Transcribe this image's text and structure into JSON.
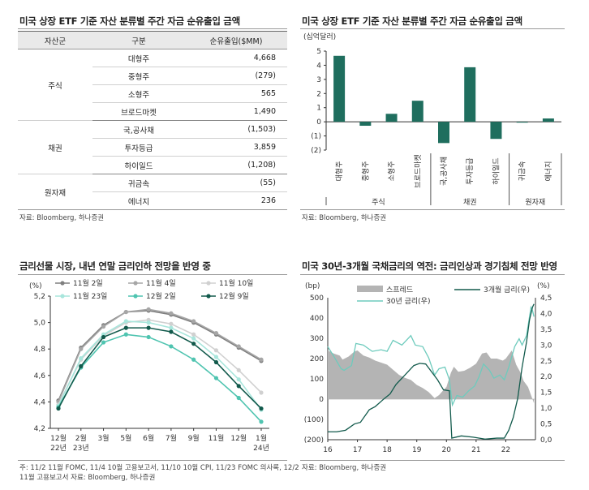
{
  "panels": {
    "tl": {
      "title": "미국 상장 ETF 기준 자산 분류별 주간 자금 순유출입 금액",
      "source": "자료: Bloomberg, 하나증권",
      "table": {
        "headers": [
          "자산군",
          "구분",
          "순유출입($MM)"
        ],
        "groups": [
          {
            "asset": "주식",
            "rows": [
              {
                "label": "대형주",
                "value": "4,668"
              },
              {
                "label": "중형주",
                "value": "(279)"
              },
              {
                "label": "소형주",
                "value": "565"
              },
              {
                "label": "브로드마켓",
                "value": "1,490"
              }
            ]
          },
          {
            "asset": "채권",
            "rows": [
              {
                "label": "국,공사채",
                "value": "(1,503)"
              },
              {
                "label": "투자등급",
                "value": "3,859"
              },
              {
                "label": "하이일드",
                "value": "(1,208)"
              }
            ]
          },
          {
            "asset": "원자재",
            "rows": [
              {
                "label": "귀금속",
                "value": "(55)"
              },
              {
                "label": "에너지",
                "value": "236"
              }
            ]
          }
        ]
      }
    },
    "tr": {
      "title": "미국 상장 ETF 기준 자산 분류별 주간 자금 순유출입 금액",
      "source": "자료: Bloomberg, 하나증권"
    },
    "bl": {
      "title": "금리선물 시장, 내년 연말 금리인하 전망을 반영 중",
      "source": "주: 11/2 11월 FOMC, 11/4 10월 고용보고서, 11/10 10월 CPI, 11/23 FOMC 의사록, 12/2",
      "source2": "11월 고용보고서          자료: Bloomberg, 하나증권"
    },
    "br": {
      "title": "미국 30년-3개월 국채금리의 역전: 금리인상과 경기침체 전망 반영",
      "source": "자료: Bloomberg, 하나증권"
    }
  },
  "chart_data": [
    {
      "type": "bar",
      "title": "미국 상장 ETF 기준 자산 분류별 주간 자금 순유출입 금액",
      "unit_label": "(십억달러)",
      "categories": [
        "대형주",
        "중형주",
        "소형주",
        "브로드마켓",
        "국,공사채",
        "투자등급",
        "하이일드",
        "귀금속",
        "에너지"
      ],
      "values": [
        4.668,
        -0.279,
        0.565,
        1.49,
        -1.503,
        3.859,
        -1.208,
        -0.055,
        0.236
      ],
      "groups": [
        {
          "label": "주식",
          "span": [
            0,
            3
          ]
        },
        {
          "label": "채권",
          "span": [
            4,
            6
          ]
        },
        {
          "label": "원자재",
          "span": [
            7,
            8
          ]
        }
      ],
      "ylim": [
        -2,
        5
      ],
      "yticks": [
        "(2)",
        "(1)",
        "0",
        "1",
        "2",
        "3",
        "4",
        "5"
      ],
      "color": "#1f6e5e"
    },
    {
      "type": "line",
      "title": "금리선물 시장, 내년 연말 금리인하 전망을 반영 중",
      "unit_label": "(%)",
      "ylim": [
        4.2,
        5.2
      ],
      "yticks": [
        "4,2",
        "4,4",
        "4,6",
        "4,8",
        "5,0",
        "5,2"
      ],
      "x": [
        "12월",
        "2월",
        "3월",
        "5월",
        "6월",
        "7월",
        "9월",
        "11월",
        "12월",
        "1월"
      ],
      "x_sub": {
        "0": "22년",
        "1": "23년",
        "9": "24년"
      },
      "series": [
        {
          "name": "11월 2일",
          "color": "#7f7f7f",
          "values": [
            4.41,
            4.81,
            4.98,
            5.08,
            5.09,
            5.06,
            5.0,
            4.91,
            4.81,
            4.71
          ]
        },
        {
          "name": "11월 4일",
          "color": "#a6a6a6",
          "values": [
            4.4,
            4.8,
            4.97,
            5.08,
            5.1,
            5.07,
            5.01,
            4.92,
            4.82,
            4.72
          ]
        },
        {
          "name": "11월 10일",
          "color": "#d0d0d0",
          "values": [
            4.38,
            4.72,
            4.9,
            5.0,
            5.02,
            4.99,
            4.91,
            4.79,
            4.64,
            4.47
          ]
        },
        {
          "name": "11월 23일",
          "color": "#a8e6dc",
          "values": [
            4.37,
            4.73,
            4.91,
            5.01,
            5.0,
            4.96,
            4.88,
            4.74,
            4.57,
            4.34
          ]
        },
        {
          "name": "12월 2일",
          "color": "#4fc4b0",
          "values": [
            4.36,
            4.66,
            4.85,
            4.91,
            4.89,
            4.82,
            4.72,
            4.58,
            4.43,
            4.25
          ]
        },
        {
          "name": "12월 9일",
          "color": "#125a4c",
          "values": [
            4.35,
            4.67,
            4.89,
            4.96,
            4.96,
            4.93,
            4.84,
            4.7,
            4.52,
            4.35
          ]
        }
      ]
    },
    {
      "type": "area",
      "title": "미국 30년-3개월 국채금리의 역전: 금리인상과 경기침체 전망 반영",
      "left_unit": "(bp)",
      "right_unit": "(%)",
      "left_ylim": [
        -200,
        500
      ],
      "left_yticks": [
        "(200)",
        "(100)",
        "0",
        "100",
        "200",
        "300",
        "400",
        "500"
      ],
      "right_ylim": [
        0,
        4.5
      ],
      "right_yticks": [
        "0,0",
        "0,5",
        "1,0",
        "1,5",
        "2,0",
        "2,5",
        "3,0",
        "3,5",
        "4,0",
        "4,5"
      ],
      "x": [
        "16",
        "17",
        "18",
        "19",
        "20",
        "21",
        "22"
      ],
      "series": [
        {
          "name": "스프레드",
          "axis": "left",
          "color": "#b4b4b4",
          "points": [
            [
              2016.0,
              240
            ],
            [
              2016.2,
              225
            ],
            [
              2016.4,
              215
            ],
            [
              2016.5,
              195
            ],
            [
              2016.7,
              210
            ],
            [
              2016.9,
              235
            ],
            [
              2017.0,
              240
            ],
            [
              2017.2,
              215
            ],
            [
              2017.4,
              205
            ],
            [
              2017.6,
              190
            ],
            [
              2017.8,
              180
            ],
            [
              2018.0,
              170
            ],
            [
              2018.2,
              145
            ],
            [
              2018.4,
              120
            ],
            [
              2018.6,
              105
            ],
            [
              2018.8,
              95
            ],
            [
              2019.0,
              70
            ],
            [
              2019.2,
              55
            ],
            [
              2019.4,
              35
            ],
            [
              2019.6,
              5
            ],
            [
              2019.75,
              20
            ],
            [
              2019.9,
              45
            ],
            [
              2020.0,
              60
            ],
            [
              2020.15,
              130
            ],
            [
              2020.25,
              160
            ],
            [
              2020.4,
              135
            ],
            [
              2020.6,
              140
            ],
            [
              2020.8,
              155
            ],
            [
              2021.0,
              175
            ],
            [
              2021.2,
              225
            ],
            [
              2021.35,
              230
            ],
            [
              2021.5,
              200
            ],
            [
              2021.7,
              200
            ],
            [
              2021.9,
              190
            ],
            [
              2022.0,
              200
            ],
            [
              2022.2,
              240
            ],
            [
              2022.35,
              170
            ],
            [
              2022.5,
              130
            ],
            [
              2022.6,
              90
            ],
            [
              2022.75,
              60
            ],
            [
              2022.85,
              20
            ],
            [
              2022.95,
              -20
            ]
          ]
        },
        {
          "name": "30년 금리(우)",
          "axis": "right",
          "color": "#6ecbbd",
          "points": [
            [
              2016.0,
              2.95
            ],
            [
              2016.2,
              2.65
            ],
            [
              2016.45,
              2.25
            ],
            [
              2016.55,
              2.2
            ],
            [
              2016.8,
              2.35
            ],
            [
              2016.95,
              3.05
            ],
            [
              2017.2,
              3.0
            ],
            [
              2017.5,
              2.8
            ],
            [
              2017.8,
              2.85
            ],
            [
              2018.0,
              2.8
            ],
            [
              2018.2,
              3.15
            ],
            [
              2018.5,
              3.0
            ],
            [
              2018.8,
              3.3
            ],
            [
              2018.95,
              3.0
            ],
            [
              2019.2,
              2.95
            ],
            [
              2019.4,
              2.6
            ],
            [
              2019.6,
              2.05
            ],
            [
              2019.75,
              2.25
            ],
            [
              2019.95,
              2.3
            ],
            [
              2020.1,
              1.9
            ],
            [
              2020.2,
              1.1
            ],
            [
              2020.35,
              1.4
            ],
            [
              2020.55,
              1.35
            ],
            [
              2020.75,
              1.55
            ],
            [
              2020.95,
              1.7
            ],
            [
              2021.1,
              2.0
            ],
            [
              2021.25,
              2.4
            ],
            [
              2021.45,
              2.2
            ],
            [
              2021.6,
              1.95
            ],
            [
              2021.8,
              2.05
            ],
            [
              2021.95,
              1.9
            ],
            [
              2022.1,
              2.3
            ],
            [
              2022.3,
              2.95
            ],
            [
              2022.45,
              3.2
            ],
            [
              2022.55,
              3.0
            ],
            [
              2022.7,
              3.3
            ],
            [
              2022.8,
              3.9
            ],
            [
              2022.85,
              4.2
            ],
            [
              2022.9,
              4.1
            ],
            [
              2022.95,
              3.9
            ]
          ]
        },
        {
          "name": "3개월 금리(우)",
          "axis": "right",
          "color": "#125a4c",
          "points": [
            [
              2016.0,
              0.25
            ],
            [
              2016.3,
              0.25
            ],
            [
              2016.6,
              0.3
            ],
            [
              2016.9,
              0.5
            ],
            [
              2017.1,
              0.55
            ],
            [
              2017.4,
              0.95
            ],
            [
              2017.6,
              1.05
            ],
            [
              2017.9,
              1.3
            ],
            [
              2018.1,
              1.45
            ],
            [
              2018.3,
              1.75
            ],
            [
              2018.6,
              2.05
            ],
            [
              2018.9,
              2.35
            ],
            [
              2019.1,
              2.42
            ],
            [
              2019.3,
              2.4
            ],
            [
              2019.5,
              2.15
            ],
            [
              2019.7,
              1.9
            ],
            [
              2019.9,
              1.58
            ],
            [
              2020.1,
              1.55
            ],
            [
              2020.18,
              0.05
            ],
            [
              2020.5,
              0.12
            ],
            [
              2020.9,
              0.08
            ],
            [
              2021.3,
              0.02
            ],
            [
              2021.7,
              0.05
            ],
            [
              2021.95,
              0.05
            ],
            [
              2022.1,
              0.3
            ],
            [
              2022.25,
              0.7
            ],
            [
              2022.4,
              1.3
            ],
            [
              2022.55,
              2.3
            ],
            [
              2022.7,
              3.1
            ],
            [
              2022.8,
              3.8
            ],
            [
              2022.9,
              4.2
            ],
            [
              2022.95,
              4.3
            ]
          ]
        }
      ]
    }
  ]
}
